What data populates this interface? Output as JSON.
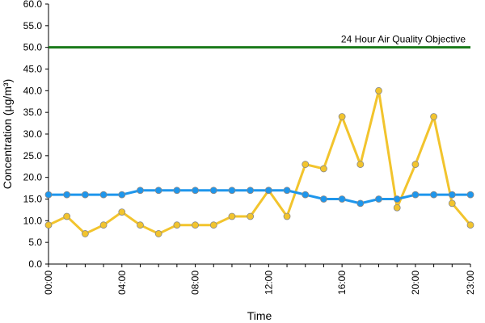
{
  "chart_data": {
    "type": "line",
    "title": "",
    "xlabel": "Time",
    "ylabel": "Concentration (µg/m³)",
    "ylim": [
      0,
      60
    ],
    "y_ticks": [
      "0.0",
      "5.0",
      "10.0",
      "15.0",
      "20.0",
      "25.0",
      "30.0",
      "35.0",
      "40.0",
      "45.0",
      "50.0",
      "55.0",
      "60.0"
    ],
    "x": [
      "00:00",
      "01:00",
      "02:00",
      "03:00",
      "04:00",
      "05:00",
      "06:00",
      "07:00",
      "08:00",
      "09:00",
      "10:00",
      "11:00",
      "12:00",
      "13:00",
      "14:00",
      "15:00",
      "16:00",
      "17:00",
      "18:00",
      "19:00",
      "20:00",
      "21:00",
      "22:00",
      "23:00"
    ],
    "x_ticks": [
      "00:00",
      "04:00",
      "08:00",
      "12:00",
      "16:00",
      "20:00",
      "23:00"
    ],
    "grid": false,
    "series": [
      {
        "color": "#f2c42d",
        "values": [
          9,
          11,
          7,
          9,
          12,
          9,
          7,
          9,
          9,
          9,
          11,
          11,
          17,
          11,
          23,
          22,
          34,
          23,
          40,
          13,
          23,
          34,
          14,
          9
        ]
      },
      {
        "color": "#1e96ec",
        "values": [
          16,
          16,
          16,
          16,
          16,
          17,
          17,
          17,
          17,
          17,
          17,
          17,
          17,
          17,
          16,
          15,
          15,
          14,
          15,
          15,
          16,
          16,
          16,
          16
        ]
      }
    ],
    "reference_line": {
      "label": "24 Hour Air Quality Objective",
      "value": 50,
      "color": "#1a7a1a"
    }
  }
}
